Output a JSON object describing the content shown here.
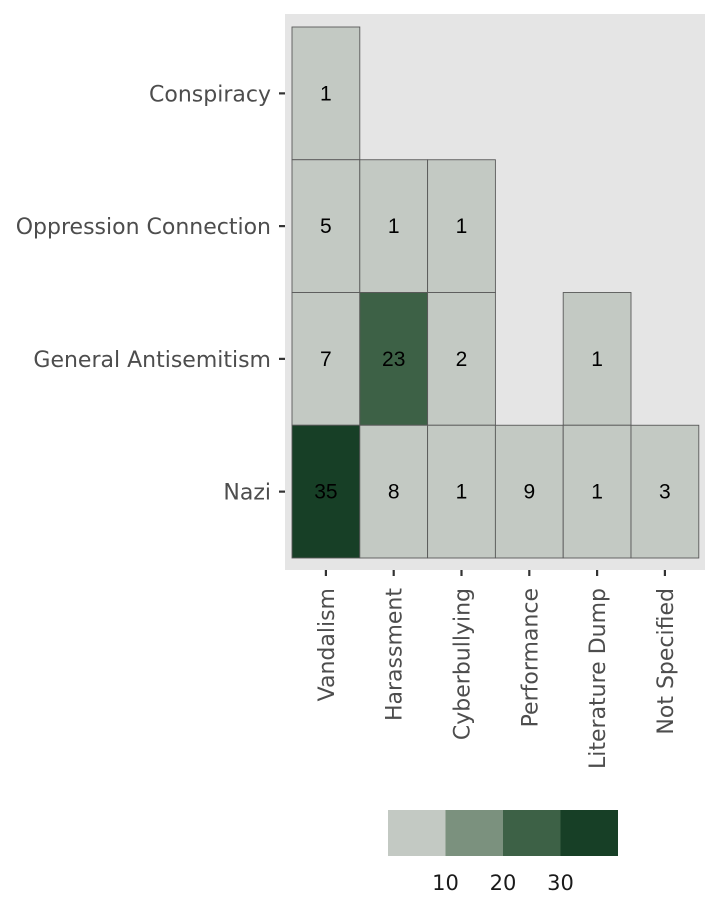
{
  "chart_data": {
    "type": "heatmap",
    "title": "",
    "xlabel": "",
    "ylabel": "",
    "x_categories": [
      "Vandalism",
      "Harassment",
      "Cyberbullying",
      "Performance",
      "Literature Dump",
      "Not Specified"
    ],
    "y_categories": [
      "Conspiracy",
      "Oppression Connection",
      "General Antisemitism",
      "Nazi"
    ],
    "cells": [
      {
        "x": "Vandalism",
        "y": "Conspiracy",
        "value": 1
      },
      {
        "x": "Vandalism",
        "y": "Oppression Connection",
        "value": 5
      },
      {
        "x": "Harassment",
        "y": "Oppression Connection",
        "value": 1
      },
      {
        "x": "Cyberbullying",
        "y": "Oppression Connection",
        "value": 1
      },
      {
        "x": "Vandalism",
        "y": "General Antisemitism",
        "value": 7
      },
      {
        "x": "Harassment",
        "y": "General Antisemitism",
        "value": 23
      },
      {
        "x": "Cyberbullying",
        "y": "General Antisemitism",
        "value": 2
      },
      {
        "x": "Literature Dump",
        "y": "General Antisemitism",
        "value": 1
      },
      {
        "x": "Vandalism",
        "y": "Nazi",
        "value": 35
      },
      {
        "x": "Harassment",
        "y": "Nazi",
        "value": 8
      },
      {
        "x": "Cyberbullying",
        "y": "Nazi",
        "value": 1
      },
      {
        "x": "Performance",
        "y": "Nazi",
        "value": 9
      },
      {
        "x": "Literature Dump",
        "y": "Nazi",
        "value": 1
      },
      {
        "x": "Not Specified",
        "y": "Nazi",
        "value": 3
      }
    ],
    "legend": {
      "position": "bottom",
      "type": "binned",
      "breaks": [
        10,
        20,
        30
      ],
      "colors": [
        "#c3c9c3",
        "#7b917e",
        "#3d6146",
        "#173f26"
      ]
    },
    "colors": {
      "panel_background": "#e5e5e5",
      "cell_border": "#595959"
    }
  }
}
